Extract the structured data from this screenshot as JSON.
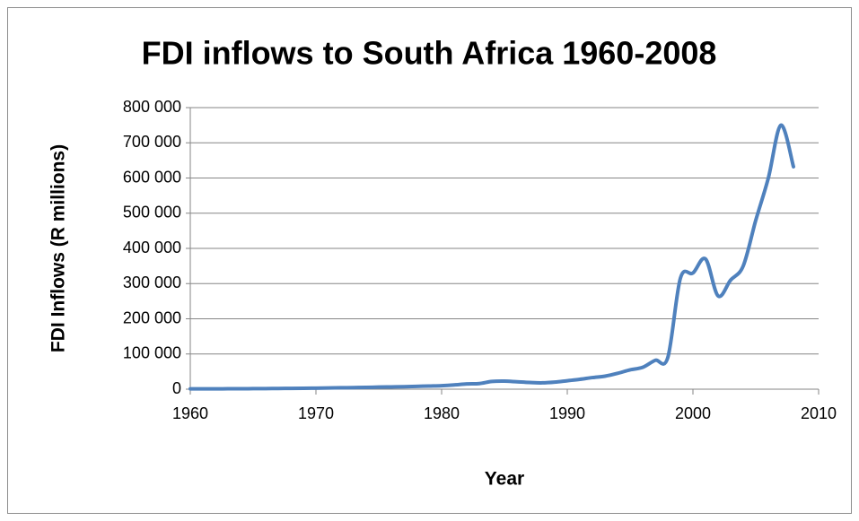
{
  "chart_data": {
    "type": "line",
    "title": "FDI inflows to South Africa 1960-2008",
    "xlabel": "Year",
    "ylabel": "FDI Inflows (R millions)",
    "x": [
      1960,
      1961,
      1962,
      1963,
      1964,
      1965,
      1966,
      1967,
      1968,
      1969,
      1970,
      1971,
      1972,
      1973,
      1974,
      1975,
      1976,
      1977,
      1978,
      1979,
      1980,
      1981,
      1982,
      1983,
      1984,
      1985,
      1986,
      1987,
      1988,
      1989,
      1990,
      1991,
      1992,
      1993,
      1994,
      1995,
      1996,
      1997,
      1998,
      1999,
      2000,
      2001,
      2002,
      2003,
      2004,
      2005,
      2006,
      2007,
      2008
    ],
    "series": [
      {
        "name": "FDI inflows",
        "color": "#4f81bd",
        "values": [
          1000,
          1000,
          1000,
          1200,
          1300,
          1500,
          1700,
          2000,
          2200,
          2500,
          3000,
          3500,
          4000,
          4500,
          5000,
          6000,
          6500,
          7000,
          8000,
          9000,
          10000,
          12000,
          15000,
          16000,
          22000,
          23000,
          21000,
          19000,
          18000,
          20000,
          24000,
          28000,
          33000,
          37000,
          45000,
          55000,
          62000,
          82000,
          90000,
          315000,
          330000,
          370000,
          265000,
          310000,
          350000,
          480000,
          600000,
          750000,
          632000
        ]
      }
    ],
    "xlim": [
      1960,
      2010
    ],
    "xticks": [
      1960,
      1970,
      1980,
      1990,
      2000,
      2010
    ],
    "ylim": [
      0,
      800000
    ],
    "yticks": [
      0,
      {
        "value": 100000,
        "label": "100 000"
      },
      {
        "value": 200000,
        "label": "200 000"
      },
      {
        "value": 300000,
        "label": "300 000"
      },
      {
        "value": 400000,
        "label": "400 000"
      },
      {
        "value": 500000,
        "label": "500 000"
      },
      {
        "value": 600000,
        "label": "600 000"
      },
      {
        "value": 700000,
        "label": "700 000"
      },
      {
        "value": 800000,
        "label": "800 000"
      }
    ],
    "grid": true
  }
}
